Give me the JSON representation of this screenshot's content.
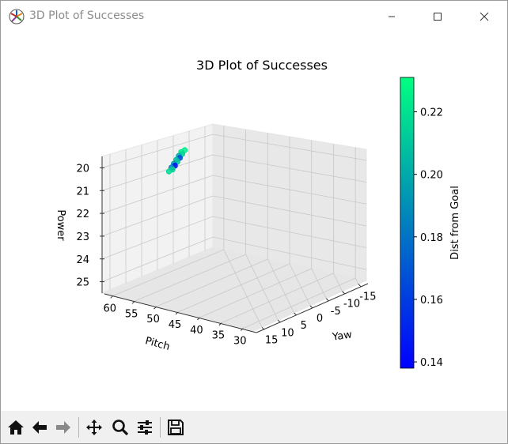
{
  "window": {
    "title": "3D Plot of Successes",
    "controls": [
      "minimize",
      "maximize",
      "close"
    ]
  },
  "toolbar": {
    "buttons": [
      {
        "name": "home",
        "icon": "home-icon"
      },
      {
        "name": "back",
        "icon": "arrow-left-icon"
      },
      {
        "name": "forward",
        "icon": "arrow-right-icon"
      },
      {
        "name": "pan",
        "icon": "move-icon"
      },
      {
        "name": "zoom",
        "icon": "magnifier-icon"
      },
      {
        "name": "configure-subplots",
        "icon": "sliders-icon"
      },
      {
        "name": "save",
        "icon": "floppy-disk-icon"
      }
    ]
  },
  "chart_data": {
    "type": "scatter3d",
    "title": "3D Plot of Successes",
    "xlabel": "Yaw",
    "ylabel": "Pitch",
    "zlabel": "Power",
    "xticks": [
      "-15",
      "-10",
      "-5",
      "0",
      "5",
      "10",
      "15"
    ],
    "yticks": [
      "60",
      "55",
      "50",
      "45",
      "40",
      "35",
      "30"
    ],
    "zticks": [
      "20",
      "21",
      "22",
      "23",
      "24",
      "25"
    ],
    "colorbar": {
      "label": "Dist from Goal",
      "ticks": [
        "0.14",
        "0.16",
        "0.18",
        "0.20",
        "0.22"
      ],
      "range": [
        0.138,
        0.231
      ],
      "colormap": "winter",
      "low_color": "#0000ff",
      "high_color": "#00ff80"
    },
    "points": [
      {
        "dist": 0.225
      },
      {
        "dist": 0.222
      },
      {
        "dist": 0.215
      },
      {
        "dist": 0.2
      },
      {
        "dist": 0.165
      },
      {
        "dist": 0.205
      },
      {
        "dist": 0.21
      },
      {
        "dist": 0.195
      },
      {
        "dist": 0.145
      },
      {
        "dist": 0.185
      },
      {
        "dist": 0.212
      },
      {
        "dist": 0.218
      }
    ]
  }
}
